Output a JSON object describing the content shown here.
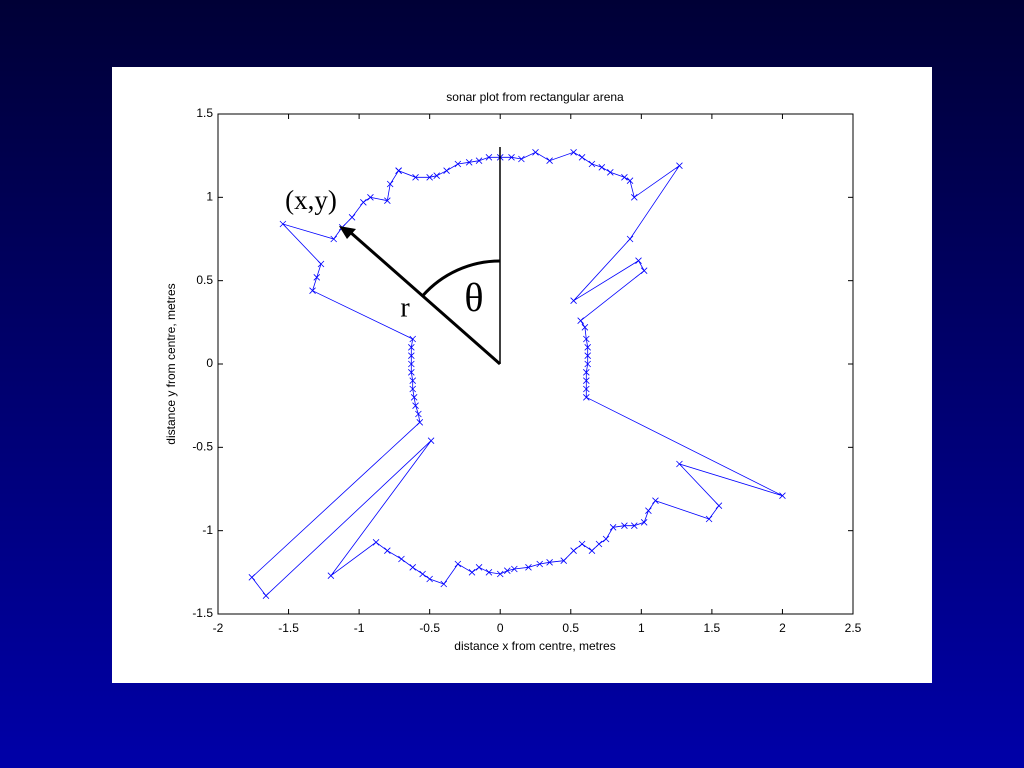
{
  "chart_data": {
    "type": "line",
    "title": "sonar plot from rectangular arena",
    "x_label": "distance x from centre, metres",
    "y_label": "distance y from centre, metres",
    "annotations": [
      "(x,y)",
      "r",
      "θ"
    ],
    "color": "#0000ff",
    "marker": "x",
    "xlim": [
      -2,
      2.5
    ],
    "xticks": [
      -2,
      -1.5,
      -1,
      -0.5,
      0,
      0.5,
      1,
      1.5,
      2,
      2.5
    ],
    "ylim": [
      -1.5,
      1.5
    ],
    "yticks": [
      -1.5,
      -1,
      -0.5,
      0,
      0.5,
      1,
      1.5
    ],
    "x": [
      -0.72,
      -0.6,
      -0.5,
      -0.45,
      -0.38,
      -0.3,
      -0.22,
      -0.15,
      -0.08,
      0,
      0.08,
      0.15,
      0.25,
      0.35,
      0.52,
      0.58,
      0.65,
      0.72,
      0.78,
      0.88,
      0.92,
      0.95,
      1.27,
      0.92,
      0.52,
      0.98,
      1.02,
      0.57,
      0.6,
      0.61,
      0.62,
      0.62,
      0.62,
      0.61,
      0.61,
      0.61,
      0.61,
      2.0,
      1.27,
      1.55,
      1.48,
      1.1,
      1.05,
      1.02,
      0.95,
      0.88,
      0.8,
      0.75,
      0.7,
      0.65,
      0.58,
      0.52,
      0.45,
      0.35,
      0.28,
      0.2,
      0.1,
      0.05,
      0,
      -0.08,
      -0.15,
      -0.2,
      -0.3,
      -0.4,
      -0.5,
      -0.55,
      -0.62,
      -0.7,
      -0.8,
      -0.88,
      -1.2,
      -0.49,
      -1.66,
      -1.76,
      -0.57,
      -0.58,
      -0.6,
      -0.61,
      -0.62,
      -0.62,
      -0.63,
      -0.63,
      -0.63,
      -0.63,
      -0.62,
      -1.33,
      -1.3,
      -1.27,
      -1.54,
      -1.18,
      -1.12,
      -1.05,
      -0.97,
      -0.92,
      -0.8,
      -0.78,
      -0.72
    ],
    "values": [
      1.16,
      1.12,
      1.12,
      1.13,
      1.16,
      1.2,
      1.21,
      1.22,
      1.24,
      1.24,
      1.24,
      1.23,
      1.27,
      1.22,
      1.27,
      1.24,
      1.2,
      1.18,
      1.15,
      1.12,
      1.1,
      1.0,
      1.19,
      0.75,
      0.38,
      0.62,
      0.56,
      0.26,
      0.22,
      0.15,
      0.1,
      0.05,
      0,
      -0.05,
      -0.1,
      -0.15,
      -0.2,
      -0.79,
      -0.6,
      -0.85,
      -0.93,
      -0.82,
      -0.88,
      -0.95,
      -0.97,
      -0.97,
      -0.98,
      -1.05,
      -1.08,
      -1.12,
      -1.08,
      -1.12,
      -1.18,
      -1.19,
      -1.2,
      -1.22,
      -1.23,
      -1.24,
      -1.26,
      -1.25,
      -1.22,
      -1.25,
      -1.2,
      -1.32,
      -1.29,
      -1.26,
      -1.22,
      -1.17,
      -1.12,
      -1.07,
      -1.27,
      -0.46,
      -1.39,
      -1.28,
      -0.35,
      -0.3,
      -0.25,
      -0.2,
      -0.15,
      -0.1,
      -0.05,
      0,
      0.05,
      0.1,
      0.15,
      0.44,
      0.52,
      0.6,
      0.84,
      0.75,
      0.82,
      0.88,
      0.97,
      1.0,
      0.98,
      1.08,
      1.16
    ]
  }
}
